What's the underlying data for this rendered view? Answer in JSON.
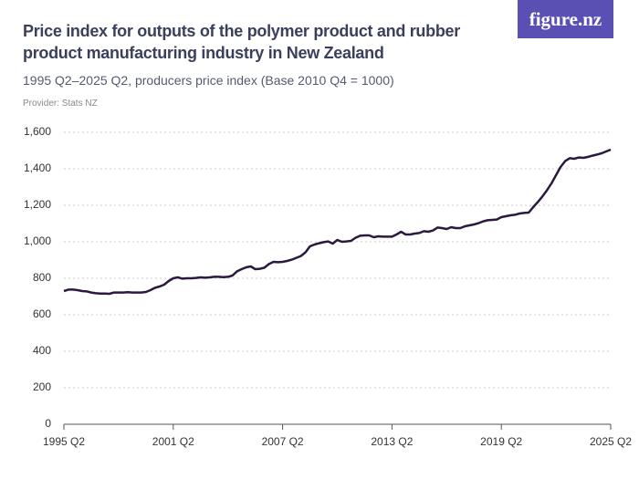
{
  "chart_data": {
    "type": "line",
    "title": "Price index for outputs of the polymer product and rubber product manufacturing industry in New Zealand",
    "subtitle": "1995 Q2–2025 Q2, producers price index (Base 2010 Q4 = 1000)",
    "provider": "Provider: Stats NZ",
    "logo": "figure.nz",
    "color": "#2b1a3f",
    "grid": true,
    "ylim": [
      0,
      1600
    ],
    "yticks": [
      0,
      200,
      400,
      600,
      800,
      {
        "value": 1000,
        "label": "1,000"
      },
      {
        "value": 1200,
        "label": "1,200"
      },
      {
        "value": 1400,
        "label": "1,400"
      },
      {
        "value": 1600,
        "label": "1,600"
      }
    ],
    "categories": [
      "1995 Q2",
      null,
      null,
      null,
      null,
      null,
      null,
      null,
      null,
      null,
      null,
      null,
      null,
      null,
      null,
      null,
      null,
      null,
      null,
      null,
      null,
      null,
      null,
      null,
      "2001 Q2",
      null,
      null,
      null,
      null,
      null,
      null,
      null,
      null,
      null,
      null,
      null,
      null,
      null,
      null,
      null,
      null,
      null,
      null,
      null,
      null,
      null,
      null,
      null,
      "2007 Q2",
      null,
      null,
      null,
      null,
      null,
      null,
      null,
      null,
      null,
      null,
      null,
      null,
      null,
      null,
      null,
      null,
      null,
      null,
      null,
      null,
      null,
      null,
      null,
      "2013 Q2",
      null,
      null,
      null,
      null,
      null,
      null,
      null,
      null,
      null,
      null,
      null,
      null,
      null,
      null,
      null,
      null,
      null,
      null,
      null,
      null,
      null,
      null,
      null,
      "2019 Q2",
      null,
      null,
      null,
      null,
      null,
      null,
      null,
      null,
      null,
      null,
      null,
      null,
      null,
      null,
      null,
      null,
      null,
      null,
      null,
      null,
      null,
      null,
      null,
      "2025 Q2"
    ],
    "values": [
      730,
      738,
      738,
      735,
      730,
      728,
      722,
      718,
      716,
      716,
      715,
      722,
      722,
      722,
      724,
      722,
      722,
      722,
      725,
      735,
      748,
      755,
      765,
      785,
      800,
      805,
      798,
      800,
      800,
      802,
      805,
      803,
      805,
      808,
      808,
      806,
      808,
      815,
      838,
      850,
      860,
      865,
      850,
      852,
      858,
      878,
      890,
      888,
      890,
      895,
      902,
      912,
      922,
      942,
      975,
      985,
      992,
      998,
      1002,
      990,
      1010,
      1000,
      1002,
      1005,
      1022,
      1033,
      1035,
      1035,
      1025,
      1030,
      1028,
      1028,
      1028,
      1040,
      1055,
      1040,
      1040,
      1045,
      1048,
      1058,
      1055,
      1062,
      1078,
      1075,
      1070,
      1080,
      1075,
      1075,
      1085,
      1090,
      1095,
      1102,
      1112,
      1118,
      1120,
      1122,
      1135,
      1140,
      1145,
      1148,
      1155,
      1158,
      1160,
      1190,
      1218,
      1248,
      1282,
      1320,
      1365,
      1410,
      1442,
      1458,
      1455,
      1462,
      1460,
      1465,
      1472,
      1478,
      1485,
      1495,
      1505
    ]
  }
}
